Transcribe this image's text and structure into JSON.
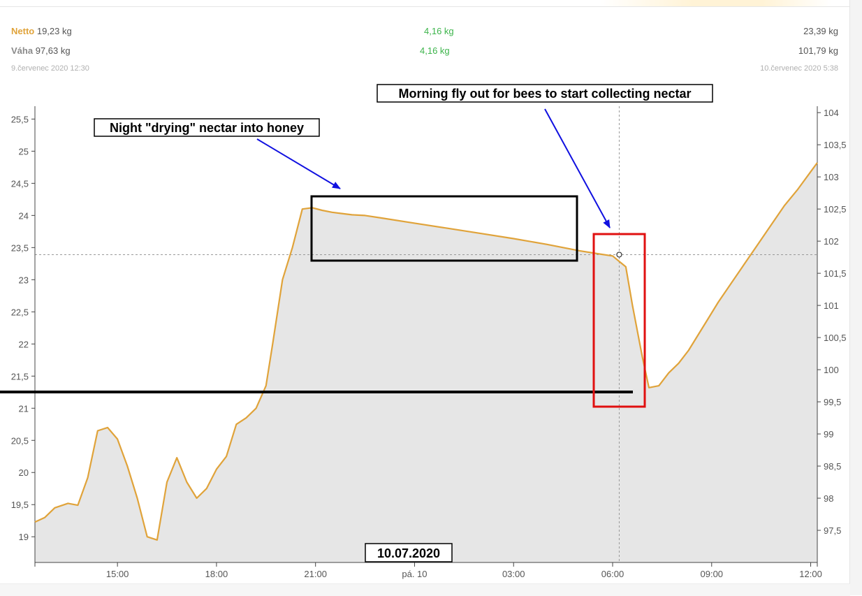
{
  "summary": {
    "netto": {
      "label": "Netto",
      "start": "19,23 kg",
      "diff": "4,16 kg",
      "end": "23,39 kg"
    },
    "vaha": {
      "label": "Váha",
      "start": "97,63 kg",
      "diff": "4,16 kg",
      "end": "101,79 kg"
    },
    "start_date": "9.červenec 2020 12:30",
    "end_date": "10.červenec 2020 5:38"
  },
  "colors": {
    "netto_line": "#e0a33a",
    "area_fill": "#e6e6e6",
    "diff_green": "#3cb44b",
    "arrow_blue": "#1010e0",
    "red_box": "#e01010"
  },
  "chart_data": {
    "type": "area",
    "x_unit": "hours since 9.7.2020 00:00",
    "x_range": [
      12.5,
      36.2
    ],
    "x_ticks": [
      {
        "x": 15,
        "label": "15:00"
      },
      {
        "x": 18,
        "label": "18:00"
      },
      {
        "x": 21,
        "label": "21:00"
      },
      {
        "x": 24,
        "label": "pá. 10"
      },
      {
        "x": 27,
        "label": "03:00"
      },
      {
        "x": 30,
        "label": "06:00"
      },
      {
        "x": 33,
        "label": "09:00"
      },
      {
        "x": 36,
        "label": "12:00"
      }
    ],
    "y_left": {
      "range": [
        18.6,
        25.7
      ],
      "ticks": [
        "25,5",
        "25",
        "24,5",
        "24",
        "23,5",
        "23",
        "22,5",
        "22",
        "21,5",
        "21",
        "20,5",
        "20",
        "19,5",
        "19"
      ],
      "tick_values": [
        25.5,
        25,
        24.5,
        24,
        23.5,
        23,
        22.5,
        22,
        21.5,
        21,
        20.5,
        20,
        19.5,
        19
      ]
    },
    "y_right": {
      "range": [
        97.0,
        104.1
      ],
      "ticks": [
        "104",
        "103,5",
        "103",
        "102,5",
        "102",
        "101,5",
        "101",
        "100,5",
        "100",
        "99,5",
        "99",
        "98,5",
        "98",
        "97,5"
      ],
      "tick_values": [
        104,
        103.5,
        103,
        102.5,
        102,
        101.5,
        101,
        100.5,
        100,
        99.5,
        99,
        98.5,
        98,
        97.5
      ]
    },
    "crosshair": {
      "x": 30.2,
      "y": 23.39
    },
    "series": [
      {
        "name": "Netto",
        "x": [
          12.5,
          12.8,
          13.1,
          13.5,
          13.8,
          14.1,
          14.4,
          14.7,
          15.0,
          15.3,
          15.6,
          15.9,
          16.2,
          16.5,
          16.8,
          17.1,
          17.4,
          17.7,
          18.0,
          18.3,
          18.6,
          18.9,
          19.2,
          19.5,
          19.7,
          20.0,
          20.3,
          20.6,
          20.9,
          21.2,
          21.5,
          21.8,
          22.1,
          22.5,
          23.0,
          24.0,
          25.0,
          26.0,
          27.0,
          28.0,
          29.0,
          29.6,
          30.0,
          30.4,
          30.6,
          30.9,
          31.1,
          31.4,
          31.7,
          32.0,
          32.3,
          32.6,
          32.9,
          33.2,
          33.6,
          34.0,
          34.4,
          34.8,
          35.2,
          35.6,
          36.0,
          36.2
        ],
        "y": [
          19.23,
          19.3,
          19.45,
          19.52,
          19.49,
          19.92,
          20.65,
          20.7,
          20.52,
          20.1,
          19.6,
          19.0,
          18.95,
          19.85,
          20.23,
          19.85,
          19.6,
          19.75,
          20.05,
          20.25,
          20.75,
          20.85,
          21.0,
          21.35,
          22.0,
          23.0,
          23.5,
          24.1,
          24.12,
          24.08,
          24.05,
          24.03,
          24.01,
          24.0,
          23.96,
          23.88,
          23.8,
          23.72,
          23.64,
          23.55,
          23.45,
          23.4,
          23.37,
          23.2,
          22.6,
          21.8,
          21.32,
          21.35,
          21.55,
          21.7,
          21.9,
          22.15,
          22.4,
          22.65,
          22.95,
          23.25,
          23.55,
          23.85,
          24.15,
          24.4,
          24.68,
          24.82
        ]
      }
    ],
    "annotations": [
      {
        "text": "Night \"drying\" nectar into honey"
      },
      {
        "text": "Morning  fly out for bees to start collecting nectar"
      },
      {
        "text": "10.07.2020"
      }
    ]
  }
}
